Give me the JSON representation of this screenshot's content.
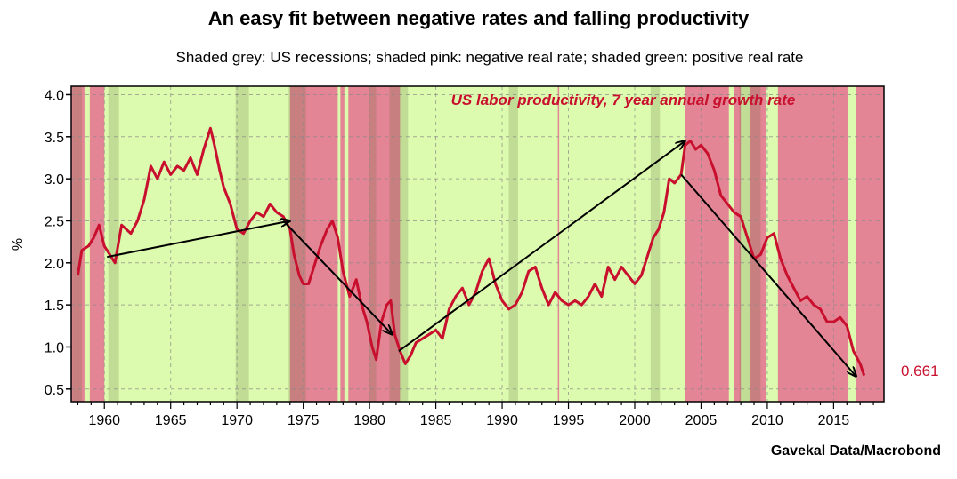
{
  "chart_data": {
    "type": "line",
    "title": "An easy fit between negative rates and falling productivity",
    "subtitle": "Shaded grey: US recessions; shaded pink: negative real rate; shaded green: positive real rate",
    "ylabel": "%",
    "xlabel": "",
    "source": "Gavekal Data/Macrobond",
    "annotation": "US labor productivity, 7 year annual growth rate",
    "last_value_label": "0.661",
    "xlim": [
      1957.5,
      2018.8
    ],
    "ylim": [
      0.35,
      4.1
    ],
    "x_ticks": [
      1960,
      1965,
      1970,
      1975,
      1980,
      1985,
      1990,
      1995,
      2000,
      2005,
      2010,
      2015
    ],
    "y_ticks": [
      0.5,
      1.0,
      1.5,
      2.0,
      2.5,
      3.0,
      3.5,
      4.0
    ],
    "y_tick_labels": [
      "0.5",
      "1.0",
      "1.5",
      "2.0",
      "2.5",
      "3.0",
      "3.5",
      "4.0"
    ],
    "grid": true,
    "colors": {
      "line": "#c8102e",
      "negative_real_rate": "#e38594",
      "positive_real_rate": "#dcfbae",
      "recession": "rgba(100,110,60,0.22)",
      "annotation": "#c8102e",
      "arrow": "#000000"
    },
    "series": [
      {
        "values": [
          [
            1958.0,
            1.85
          ],
          [
            1958.3,
            2.15
          ],
          [
            1958.8,
            2.2
          ],
          [
            1959.2,
            2.3
          ],
          [
            1959.6,
            2.45
          ],
          [
            1960.0,
            2.2
          ],
          [
            1960.4,
            2.1
          ],
          [
            1960.8,
            2.0
          ],
          [
            1961.3,
            2.45
          ],
          [
            1962.0,
            2.35
          ],
          [
            1962.5,
            2.5
          ],
          [
            1963.0,
            2.75
          ],
          [
            1963.5,
            3.15
          ],
          [
            1964.0,
            3.0
          ],
          [
            1964.5,
            3.2
          ],
          [
            1965.0,
            3.05
          ],
          [
            1965.5,
            3.15
          ],
          [
            1966.0,
            3.1
          ],
          [
            1966.5,
            3.25
          ],
          [
            1967.0,
            3.05
          ],
          [
            1967.5,
            3.35
          ],
          [
            1968.0,
            3.6
          ],
          [
            1968.3,
            3.4
          ],
          [
            1968.7,
            3.1
          ],
          [
            1969.0,
            2.9
          ],
          [
            1969.5,
            2.7
          ],
          [
            1970.0,
            2.4
          ],
          [
            1970.5,
            2.35
          ],
          [
            1971.0,
            2.5
          ],
          [
            1971.5,
            2.6
          ],
          [
            1972.0,
            2.55
          ],
          [
            1972.5,
            2.7
          ],
          [
            1973.0,
            2.6
          ],
          [
            1973.5,
            2.55
          ],
          [
            1974.0,
            2.4
          ],
          [
            1974.3,
            2.1
          ],
          [
            1974.7,
            1.85
          ],
          [
            1975.0,
            1.75
          ],
          [
            1975.4,
            1.75
          ],
          [
            1975.8,
            1.95
          ],
          [
            1976.3,
            2.2
          ],
          [
            1976.8,
            2.4
          ],
          [
            1977.2,
            2.5
          ],
          [
            1977.6,
            2.3
          ],
          [
            1978.0,
            1.9
          ],
          [
            1978.5,
            1.6
          ],
          [
            1979.0,
            1.8
          ],
          [
            1979.4,
            1.5
          ],
          [
            1979.8,
            1.3
          ],
          [
            1980.2,
            1.0
          ],
          [
            1980.5,
            0.85
          ],
          [
            1980.9,
            1.3
          ],
          [
            1981.3,
            1.5
          ],
          [
            1981.6,
            1.55
          ],
          [
            1981.9,
            1.15
          ],
          [
            1982.3,
            0.95
          ],
          [
            1982.7,
            0.8
          ],
          [
            1983.1,
            0.9
          ],
          [
            1983.5,
            1.05
          ],
          [
            1984.0,
            1.1
          ],
          [
            1984.5,
            1.15
          ],
          [
            1985.0,
            1.2
          ],
          [
            1985.5,
            1.1
          ],
          [
            1986.0,
            1.45
          ],
          [
            1986.5,
            1.6
          ],
          [
            1987.0,
            1.7
          ],
          [
            1987.5,
            1.5
          ],
          [
            1988.0,
            1.65
          ],
          [
            1988.5,
            1.9
          ],
          [
            1989.0,
            2.05
          ],
          [
            1989.5,
            1.75
          ],
          [
            1990.0,
            1.55
          ],
          [
            1990.5,
            1.45
          ],
          [
            1991.0,
            1.5
          ],
          [
            1991.5,
            1.65
          ],
          [
            1992.0,
            1.9
          ],
          [
            1992.5,
            1.95
          ],
          [
            1993.0,
            1.7
          ],
          [
            1993.5,
            1.5
          ],
          [
            1994.0,
            1.65
          ],
          [
            1994.5,
            1.55
          ],
          [
            1995.0,
            1.5
          ],
          [
            1995.5,
            1.55
          ],
          [
            1996.0,
            1.5
          ],
          [
            1996.5,
            1.6
          ],
          [
            1997.0,
            1.75
          ],
          [
            1997.5,
            1.6
          ],
          [
            1998.0,
            1.95
          ],
          [
            1998.5,
            1.8
          ],
          [
            1999.0,
            1.95
          ],
          [
            1999.5,
            1.85
          ],
          [
            2000.0,
            1.75
          ],
          [
            2000.5,
            1.85
          ],
          [
            2001.0,
            2.1
          ],
          [
            2001.4,
            2.3
          ],
          [
            2001.8,
            2.4
          ],
          [
            2002.2,
            2.6
          ],
          [
            2002.6,
            3.0
          ],
          [
            2003.0,
            2.95
          ],
          [
            2003.5,
            3.05
          ],
          [
            2003.8,
            3.4
          ],
          [
            2004.2,
            3.45
          ],
          [
            2004.6,
            3.35
          ],
          [
            2005.0,
            3.4
          ],
          [
            2005.5,
            3.3
          ],
          [
            2006.0,
            3.1
          ],
          [
            2006.5,
            2.8
          ],
          [
            2007.0,
            2.7
          ],
          [
            2007.5,
            2.6
          ],
          [
            2008.0,
            2.55
          ],
          [
            2008.5,
            2.3
          ],
          [
            2009.0,
            2.05
          ],
          [
            2009.5,
            2.1
          ],
          [
            2010.0,
            2.3
          ],
          [
            2010.5,
            2.35
          ],
          [
            2011.0,
            2.05
          ],
          [
            2011.5,
            1.85
          ],
          [
            2012.0,
            1.7
          ],
          [
            2012.5,
            1.55
          ],
          [
            2013.0,
            1.6
          ],
          [
            2013.5,
            1.5
          ],
          [
            2014.0,
            1.45
          ],
          [
            2014.5,
            1.3
          ],
          [
            2015.0,
            1.3
          ],
          [
            2015.5,
            1.35
          ],
          [
            2016.0,
            1.25
          ],
          [
            2016.5,
            0.95
          ],
          [
            2017.0,
            0.8
          ],
          [
            2017.3,
            0.661
          ]
        ]
      }
    ],
    "recessions": [
      [
        1957.6,
        1958.3
      ],
      [
        1960.3,
        1961.1
      ],
      [
        1969.9,
        1970.9
      ],
      [
        1973.9,
        1975.2
      ],
      [
        1980.0,
        1980.5
      ],
      [
        1981.5,
        1982.9
      ],
      [
        1990.5,
        1991.2
      ],
      [
        2001.2,
        2001.9
      ],
      [
        2007.9,
        2009.5
      ]
    ],
    "negative_rate_periods": [
      [
        1957.5,
        1958.5
      ],
      [
        1958.9,
        1960.0
      ],
      [
        1974.0,
        1977.6
      ],
      [
        1977.8,
        1978.1
      ],
      [
        1978.4,
        1982.3
      ],
      [
        1994.2,
        1994.3
      ],
      [
        2003.8,
        2007.1
      ],
      [
        2007.5,
        2008.0
      ],
      [
        2008.7,
        2009.9
      ],
      [
        2010.8,
        2016.1
      ],
      [
        2016.7,
        2018.8
      ]
    ],
    "arrows": [
      {
        "from": [
          1960.2,
          2.07
        ],
        "to": [
          1974.0,
          2.5
        ]
      },
      {
        "from": [
          1973.5,
          2.5
        ],
        "to": [
          1981.7,
          1.15
        ]
      },
      {
        "from": [
          1982.2,
          0.95
        ],
        "to": [
          2003.8,
          3.45
        ]
      },
      {
        "from": [
          2003.5,
          3.05
        ],
        "to": [
          2016.7,
          0.65
        ]
      }
    ]
  }
}
